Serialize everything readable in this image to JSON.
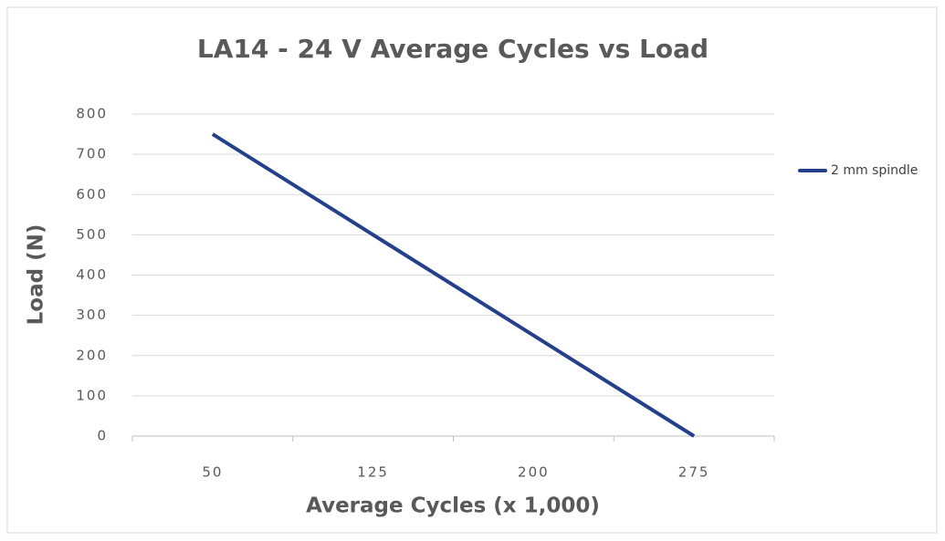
{
  "chart_data": {
    "type": "line",
    "title": "LA14 - 24 V Average Cycles vs Load",
    "x_label": "Average Cycles (x 1,000)",
    "y_label": "Load (N)",
    "categories": [
      "50",
      "125",
      "200",
      "275"
    ],
    "series": [
      {
        "name": "2 mm spindle",
        "color": "#23408e",
        "values": [
          750,
          500,
          250,
          0
        ]
      }
    ],
    "ylim": [
      0,
      800
    ],
    "yticks": [
      0,
      100,
      200,
      300,
      400,
      500,
      600,
      700,
      800
    ],
    "grid": true,
    "legend": "right"
  }
}
